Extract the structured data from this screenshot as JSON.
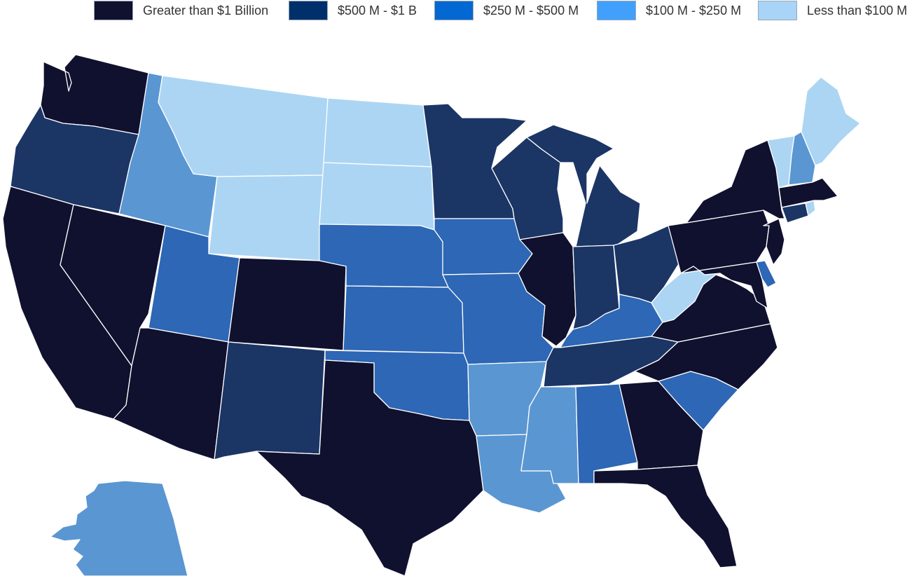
{
  "legend": {
    "items": [
      {
        "label": "Greater than $1 Billion",
        "color": "#10102f"
      },
      {
        "label": "$500 M - $1 B",
        "color": "#00306b"
      },
      {
        "label": "$250 M - $500 M",
        "color": "#0368d1"
      },
      {
        "label": "$100 M - $250 M",
        "color": "#41a0fc"
      },
      {
        "label": "Less than $100 M",
        "color": "#a8d5f7"
      }
    ]
  },
  "map_colors": {
    "tier1": "#10102f",
    "tier2": "#1b3565",
    "tier3": "#2d67b5",
    "tier4": "#5a96d2",
    "tier5": "#acd5f4"
  },
  "states": {
    "WA": "tier1",
    "OR": "tier2",
    "CA": "tier1",
    "NV": "tier1",
    "ID": "tier4",
    "MT": "tier5",
    "WY": "tier5",
    "UT": "tier3",
    "AZ": "tier1",
    "CO": "tier1",
    "NM": "tier2",
    "ND": "tier5",
    "SD": "tier5",
    "NE": "tier3",
    "KS": "tier3",
    "OK": "tier3",
    "TX": "tier1",
    "MN": "tier2",
    "IA": "tier3",
    "MO": "tier3",
    "AR": "tier4",
    "LA": "tier4",
    "WI": "tier2",
    "IL": "tier1",
    "MI": "tier2",
    "IN": "tier2",
    "OH": "tier2",
    "KY": "tier3",
    "TN": "tier2",
    "MS": "tier4",
    "AL": "tier3",
    "GA": "tier1",
    "FL": "tier1",
    "SC": "tier3",
    "NC": "tier1",
    "VA": "tier1",
    "WV": "tier5",
    "MD": "tier1",
    "DE": "tier3",
    "PA": "tier1",
    "NJ": "tier1",
    "NY": "tier1",
    "CT": "tier2",
    "RI": "tier5",
    "MA": "tier1",
    "VT": "tier5",
    "NH": "tier4",
    "ME": "tier5",
    "AK": "tier4"
  }
}
